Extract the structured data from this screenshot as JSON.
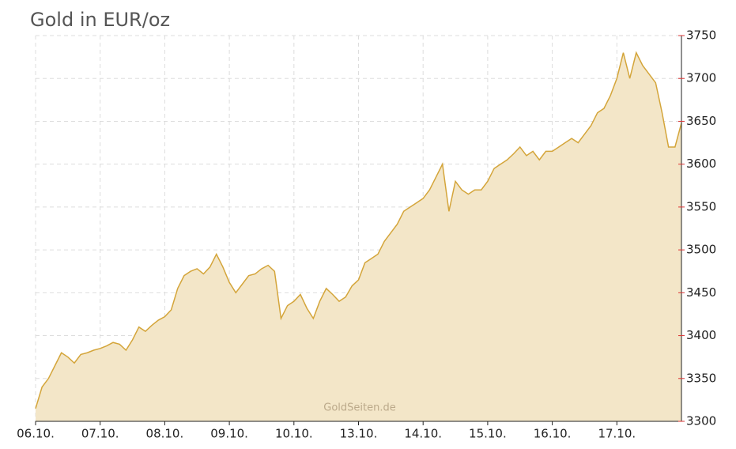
{
  "chart_data": {
    "type": "area",
    "title": "Gold in EUR/oz",
    "watermark": "GoldSeiten.de",
    "x": [
      0,
      0.1,
      0.2,
      0.3,
      0.4,
      0.5,
      0.6,
      0.7,
      0.8,
      0.9,
      1,
      1.1,
      1.2,
      1.3,
      1.4,
      1.5,
      1.6,
      1.7,
      1.8,
      1.9,
      2,
      2.1,
      2.2,
      2.3,
      2.4,
      2.5,
      2.6,
      2.7,
      2.8,
      2.9,
      3,
      3.1,
      3.2,
      3.3,
      3.4,
      3.5,
      3.6,
      3.7,
      3.8,
      3.9,
      4,
      4.1,
      4.2,
      4.3,
      4.4,
      4.5,
      4.6,
      4.7,
      4.8,
      4.9,
      5,
      5.1,
      5.2,
      5.3,
      5.4,
      5.5,
      5.6,
      5.7,
      5.8,
      5.9,
      6,
      6.1,
      6.2,
      6.3,
      6.4,
      6.5,
      6.6,
      6.7,
      6.8,
      6.9,
      7,
      7.1,
      7.2,
      7.3,
      7.4,
      7.5,
      7.6,
      7.7,
      7.8,
      7.9,
      8,
      8.1,
      8.2,
      8.3,
      8.4,
      8.5,
      8.6,
      8.7,
      8.8,
      8.9,
      9,
      9.1,
      9.2,
      9.3,
      9.4,
      9.5,
      9.6,
      9.7,
      9.8,
      9.9,
      10
    ],
    "values": [
      3315,
      3340,
      3350,
      3365,
      3380,
      3375,
      3368,
      3378,
      3380,
      3383,
      3385,
      3388,
      3392,
      3390,
      3383,
      3395,
      3410,
      3405,
      3412,
      3418,
      3422,
      3430,
      3455,
      3470,
      3475,
      3478,
      3472,
      3480,
      3495,
      3480,
      3462,
      3450,
      3460,
      3470,
      3472,
      3478,
      3482,
      3475,
      3420,
      3435,
      3440,
      3448,
      3432,
      3420,
      3440,
      3455,
      3448,
      3440,
      3445,
      3458,
      3465,
      3485,
      3490,
      3495,
      3510,
      3520,
      3530,
      3545,
      3550,
      3555,
      3560,
      3570,
      3585,
      3600,
      3545,
      3580,
      3570,
      3565,
      3570,
      3570,
      3580,
      3595,
      3600,
      3605,
      3612,
      3620,
      3610,
      3615,
      3605,
      3615,
      3615,
      3620,
      3625,
      3630,
      3625,
      3635,
      3645,
      3660,
      3665,
      3680,
      3700,
      3730,
      3700,
      3730,
      3715,
      3705,
      3695,
      3660,
      3620,
      3620,
      3648
    ],
    "color": "#d4a53a",
    "fill": "#f3e6c8",
    "xlim": [
      0,
      10
    ],
    "xticks": [
      {
        "value": 0,
        "label": "06.10."
      },
      {
        "value": 1,
        "label": "07.10."
      },
      {
        "value": 2,
        "label": "08.10."
      },
      {
        "value": 3,
        "label": "09.10."
      },
      {
        "value": 4,
        "label": "10.10."
      },
      {
        "value": 5,
        "label": "13.10."
      },
      {
        "value": 6,
        "label": "14.10."
      },
      {
        "value": 7,
        "label": "15.10."
      },
      {
        "value": 8,
        "label": "16.10."
      },
      {
        "value": 9,
        "label": "17.10."
      }
    ],
    "ylim": [
      3300,
      3750
    ],
    "yticks": [
      3300,
      3350,
      3400,
      3450,
      3500,
      3550,
      3600,
      3650,
      3700,
      3750
    ],
    "grid": true
  }
}
